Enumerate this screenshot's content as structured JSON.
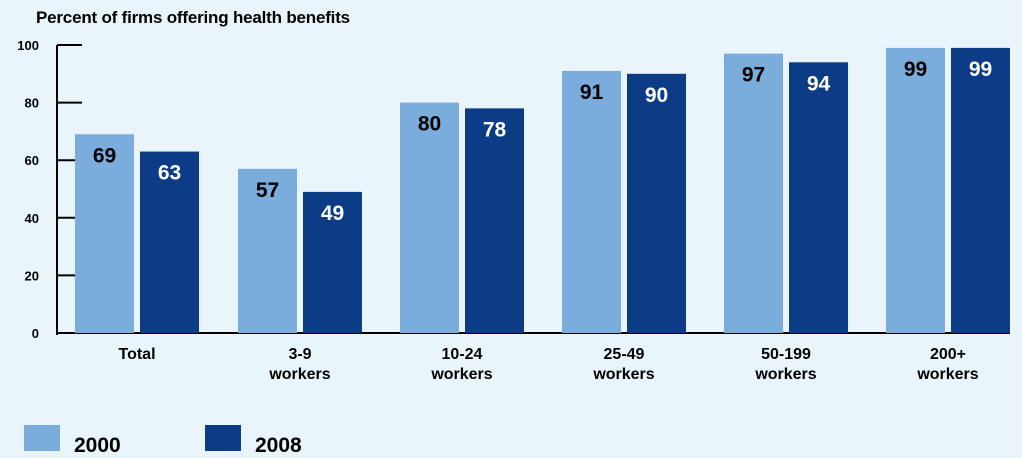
{
  "chart_data": {
    "type": "bar",
    "title": "Percent of firms offering health benefits",
    "xlabel": "",
    "ylabel": "",
    "ylim": [
      0,
      100
    ],
    "y_ticks": [
      0,
      20,
      40,
      60,
      80,
      100
    ],
    "categories": [
      [
        "Total"
      ],
      [
        "3-9",
        "workers"
      ],
      [
        "10-24",
        "workers"
      ],
      [
        "25-49",
        "workers"
      ],
      [
        "50-199",
        "workers"
      ],
      [
        "200+",
        "workers"
      ]
    ],
    "series": [
      {
        "name": "2000",
        "color": "#7aacdc",
        "values": [
          69,
          57,
          80,
          91,
          97,
          99
        ]
      },
      {
        "name": "2008",
        "color": "#0c3c86",
        "values": [
          63,
          49,
          78,
          90,
          94,
          99
        ]
      }
    ],
    "grid": false,
    "legend_position": "bottom-left",
    "data_labels": true
  }
}
